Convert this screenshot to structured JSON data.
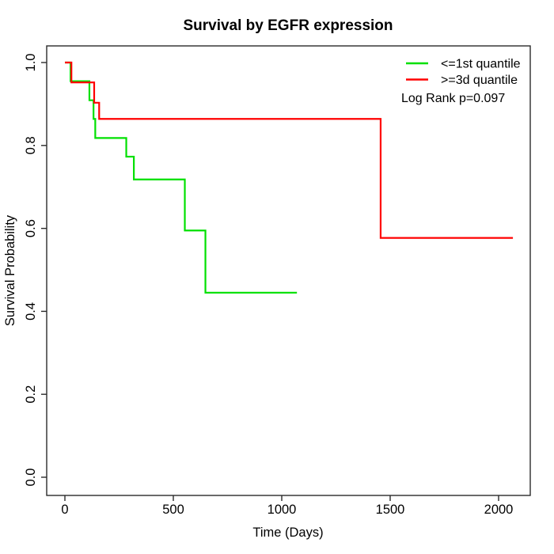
{
  "title": "Survival by EGFR expression",
  "axes": {
    "x": {
      "label": "Time (Days)",
      "tick_labels": [
        "0",
        "500",
        "1000",
        "1500",
        "2000"
      ]
    },
    "y": {
      "label": "Survival Probability",
      "tick_labels": [
        "0.0",
        "0.2",
        "0.4",
        "0.6",
        "0.8",
        "1.0"
      ]
    }
  },
  "legend": {
    "items": [
      {
        "label": "<=1st quantile",
        "color": "#00e000"
      },
      {
        "label": ">=3d quantile",
        "color": "#ff0000"
      }
    ],
    "note": "Log Rank p=0.097"
  },
  "chart_data": {
    "type": "line",
    "subtype": "kaplan_meier_step",
    "title": "Survival by EGFR expression",
    "xlabel": "Time (Days)",
    "ylabel": "Survival Probability",
    "xlim": [
      0,
      2146
    ],
    "ylim": [
      0.0,
      1.0
    ],
    "x_ticks": [
      0,
      500,
      1000,
      1500,
      2000
    ],
    "y_ticks": [
      0.0,
      0.2,
      0.4,
      0.6,
      0.8,
      1.0
    ],
    "grid": false,
    "legend_position": "top-right",
    "annotation": "Log Rank p=0.097",
    "series": [
      {
        "name": "<=1st quantile",
        "color": "#00e000",
        "steps": [
          [
            0,
            1.0
          ],
          [
            26,
            0.955
          ],
          [
            113,
            0.909
          ],
          [
            132,
            0.864
          ],
          [
            140,
            0.818
          ],
          [
            283,
            0.773
          ],
          [
            318,
            0.718
          ],
          [
            553,
            0.595
          ],
          [
            648,
            0.445
          ]
        ],
        "end_time": 1070
      },
      {
        "name": ">=3d quantile",
        "color": "#ff0000",
        "steps": [
          [
            0,
            1.0
          ],
          [
            30,
            0.952
          ],
          [
            135,
            0.903
          ],
          [
            158,
            0.864
          ],
          [
            1456,
            0.577
          ]
        ],
        "end_time": 2066
      }
    ]
  }
}
